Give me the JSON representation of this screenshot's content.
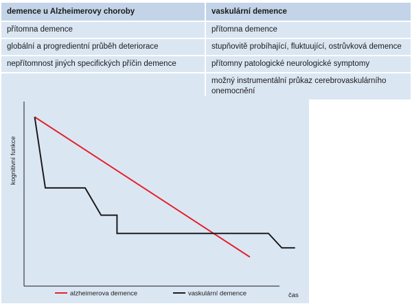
{
  "table": {
    "headers": [
      "demence u Alzheimerovy choroby",
      "vaskulární demence"
    ],
    "rows": [
      [
        "přítomna demence",
        "přítomna demence"
      ],
      [
        "globální a progredientní průběh deteriorace",
        "stupňovitě probíhající, fluktuující, ostrůvková demence"
      ],
      [
        "nepřítomnost jiných specifických příčin demence",
        "přítomny patologické neurologické symptomy"
      ],
      [
        "",
        "možný instrumentální průkaz cerebrovaskulárního onemocnění"
      ]
    ]
  },
  "chart_data": {
    "type": "line",
    "ylabel": "kognitivní funkce",
    "xlabel": "čas",
    "x_axis": "time (unscaled)",
    "y_axis": "cognitive function (unscaled)",
    "xlim": [
      0,
      100
    ],
    "ylim": [
      0,
      100
    ],
    "grid": false,
    "legend_position": "bottom",
    "series": [
      {
        "name": "alzheimerova demence",
        "color": "#e3212b",
        "points": [
          [
            4,
            93
          ],
          [
            85,
            16
          ]
        ]
      },
      {
        "name": "vaskulární demence",
        "color": "#1a1a1a",
        "points": [
          [
            4,
            93
          ],
          [
            8,
            54
          ],
          [
            23,
            54
          ],
          [
            29,
            39
          ],
          [
            35,
            39
          ],
          [
            35,
            29
          ],
          [
            92,
            29
          ],
          [
            97,
            21
          ],
          [
            102,
            21
          ]
        ]
      }
    ]
  }
}
